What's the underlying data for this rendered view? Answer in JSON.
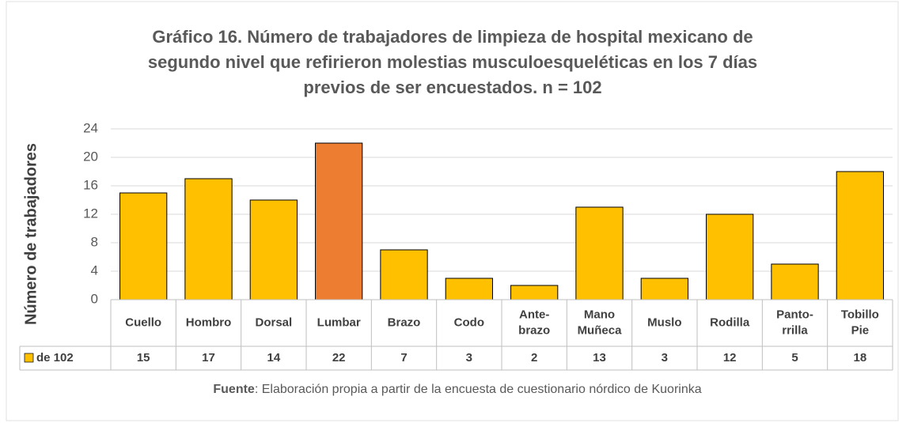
{
  "chart_data": {
    "type": "bar",
    "title": [
      "Gráfico 16. Número de trabajadores de limpieza de hospital mexicano de",
      "segundo nivel que refirieron molestias musculoesqueléticas en los 7 días",
      "previos de ser encuestados. n = 102"
    ],
    "y_axis_label": "Número de trabajadores",
    "categories": [
      [
        "Cuello"
      ],
      [
        "Hombro"
      ],
      [
        "Dorsal"
      ],
      [
        "Lumbar"
      ],
      [
        "Brazo"
      ],
      [
        "Codo"
      ],
      [
        "Ante-",
        "brazo"
      ],
      [
        "Mano",
        "Muñeca"
      ],
      [
        "Muslo"
      ],
      [
        "Rodilla"
      ],
      [
        "Panto-",
        "rrilla"
      ],
      [
        "Tobillo",
        "Pie"
      ]
    ],
    "series": [
      {
        "name": "de 102",
        "color": "#ffc000",
        "colors": [
          "#ffc000",
          "#ffc000",
          "#ffc000",
          "#ed7d31",
          "#ffc000",
          "#ffc000",
          "#ffc000",
          "#ffc000",
          "#ffc000",
          "#ffc000",
          "#ffc000",
          "#ffc000"
        ],
        "values": [
          15,
          17,
          14,
          22,
          7,
          3,
          2,
          13,
          3,
          12,
          5,
          18
        ]
      }
    ],
    "ylim": [
      0,
      24
    ],
    "yticks": [
      0,
      4,
      8,
      12,
      16,
      20,
      24
    ],
    "grid": true,
    "source": {
      "label": "Fuente",
      "text": ": Elaboración propia a partir de la encuesta de cuestionario nórdico de Kuorinka"
    }
  }
}
